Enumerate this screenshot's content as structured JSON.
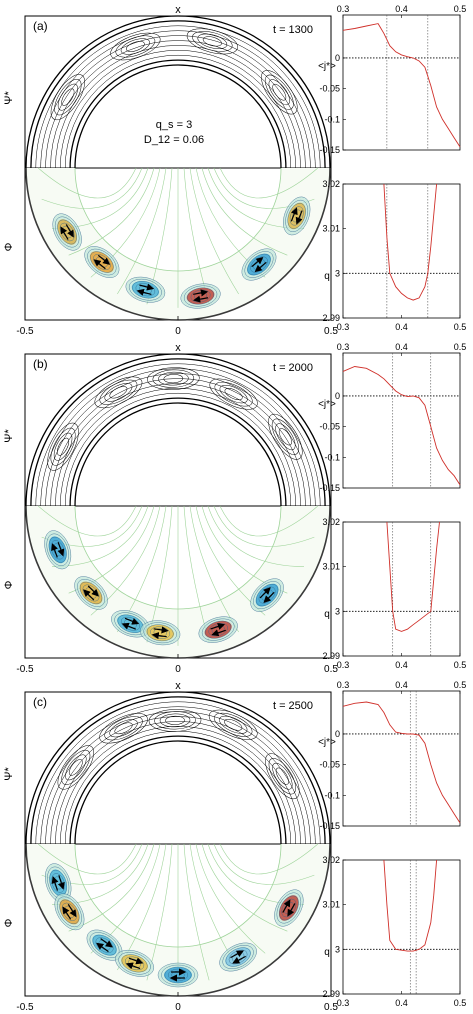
{
  "figure": {
    "panels": [
      {
        "label": "(a)",
        "time": "t = 1300",
        "annotation_lines": [
          "q_s = 3",
          "D_12 = 0.06"
        ],
        "top_label": "x",
        "upper_ylabel": "Ψ*",
        "lower_ylabel": "Φ",
        "x_ticks": [
          "-0.5",
          "0",
          "0.5"
        ],
        "vortex_count": 6
      },
      {
        "label": "(b)",
        "time": "t = 2000",
        "annotation_lines": [],
        "top_label": "x",
        "upper_ylabel": "Ψ*",
        "lower_ylabel": "Φ",
        "x_ticks": [
          "-0.5",
          "0",
          "0.5"
        ],
        "vortex_count": 6
      },
      {
        "label": "(c)",
        "time": "t = 2500",
        "annotation_lines": [],
        "top_label": "x",
        "upper_ylabel": "Ψ*",
        "lower_ylabel": "Φ",
        "x_ticks": [
          "-0.5",
          "0",
          "0.5"
        ],
        "vortex_count": 7
      }
    ]
  },
  "chart_data": [
    {
      "type": "line",
      "panel": "a",
      "name": "j_profile",
      "ylabel": "<j*>",
      "xlim": [
        0.3,
        0.5
      ],
      "ylim": [
        -0.15,
        0.07
      ],
      "x_ticks": [
        "0.3",
        "0.4",
        "0.5"
      ],
      "y_ticks": [
        "0",
        "-0.05",
        "-0.1",
        "-0.15"
      ],
      "series": [
        {
          "x": [
            0.3,
            0.32,
            0.34,
            0.36,
            0.37,
            0.38,
            0.39,
            0.4,
            0.41,
            0.42,
            0.43,
            0.44,
            0.45,
            0.46,
            0.47,
            0.48,
            0.49,
            0.5
          ],
          "y": [
            0.045,
            0.048,
            0.052,
            0.056,
            0.04,
            0.02,
            0.01,
            0.005,
            0.002,
            0.0,
            -0.005,
            -0.015,
            -0.045,
            -0.08,
            -0.1,
            -0.115,
            -0.13,
            -0.145
          ]
        }
      ],
      "vlines": [
        0.375,
        0.445
      ]
    },
    {
      "type": "line",
      "panel": "a",
      "name": "q_profile",
      "ylabel": "q",
      "xlim": [
        0.3,
        0.5
      ],
      "ylim": [
        2.99,
        3.02
      ],
      "x_ticks": [
        "0.3",
        "0.4",
        "0.5"
      ],
      "y_ticks": [
        "3.02",
        "3.01",
        "3",
        "2.99"
      ],
      "series": [
        {
          "x": [
            0.37,
            0.375,
            0.38,
            0.39,
            0.4,
            0.41,
            0.42,
            0.43,
            0.44,
            0.445,
            0.45,
            0.455,
            0.46
          ],
          "y": [
            3.02,
            3.008,
            3.0,
            2.997,
            2.9955,
            2.9945,
            2.994,
            2.9945,
            2.997,
            3.0,
            3.006,
            3.013,
            3.02
          ]
        }
      ],
      "hline": 3.0,
      "vlines": [
        0.375,
        0.445
      ]
    },
    {
      "type": "line",
      "panel": "b",
      "name": "j_profile",
      "ylabel": "<j*>",
      "xlim": [
        0.3,
        0.5
      ],
      "ylim": [
        -0.15,
        0.07
      ],
      "x_ticks": [
        "0.3",
        "0.4",
        "0.5"
      ],
      "y_ticks": [
        "0",
        "-0.05",
        "-0.1",
        "-0.15"
      ],
      "series": [
        {
          "x": [
            0.3,
            0.32,
            0.34,
            0.36,
            0.37,
            0.38,
            0.39,
            0.4,
            0.41,
            0.42,
            0.43,
            0.44,
            0.45,
            0.46,
            0.47,
            0.48,
            0.49,
            0.5
          ],
          "y": [
            0.04,
            0.048,
            0.045,
            0.035,
            0.028,
            0.018,
            0.008,
            0.002,
            -0.001,
            0.0,
            -0.003,
            -0.015,
            -0.05,
            -0.085,
            -0.105,
            -0.12,
            -0.13,
            -0.145
          ]
        }
      ],
      "vlines": [
        0.385,
        0.45
      ]
    },
    {
      "type": "line",
      "panel": "b",
      "name": "q_profile",
      "ylabel": "q",
      "xlim": [
        0.3,
        0.5
      ],
      "ylim": [
        2.99,
        3.02
      ],
      "x_ticks": [
        "0.3",
        "0.4",
        "0.5"
      ],
      "y_ticks": [
        "3.02",
        "3.01",
        "3",
        "2.99"
      ],
      "series": [
        {
          "x": [
            0.375,
            0.38,
            0.385,
            0.39,
            0.4,
            0.41,
            0.42,
            0.43,
            0.44,
            0.45,
            0.455,
            0.46,
            0.465
          ],
          "y": [
            3.02,
            3.01,
            3.0,
            2.996,
            2.9955,
            2.996,
            2.997,
            2.998,
            2.999,
            3.0,
            3.007,
            3.014,
            3.02
          ]
        }
      ],
      "hline": 3.0,
      "vlines": [
        0.385,
        0.45
      ]
    },
    {
      "type": "line",
      "panel": "c",
      "name": "j_profile",
      "ylabel": "<j*>",
      "xlim": [
        0.3,
        0.5
      ],
      "ylim": [
        -0.15,
        0.07
      ],
      "x_ticks": [
        "0.3",
        "0.4",
        "0.5"
      ],
      "y_ticks": [
        "0",
        "-0.05",
        "-0.1",
        "-0.15"
      ],
      "series": [
        {
          "x": [
            0.3,
            0.32,
            0.34,
            0.36,
            0.37,
            0.38,
            0.39,
            0.4,
            0.41,
            0.42,
            0.43,
            0.44,
            0.45,
            0.46,
            0.47,
            0.48,
            0.49,
            0.5
          ],
          "y": [
            0.045,
            0.05,
            0.052,
            0.048,
            0.035,
            0.015,
            0.003,
            0.001,
            0.0,
            0.0,
            -0.002,
            -0.015,
            -0.05,
            -0.08,
            -0.1,
            -0.115,
            -0.13,
            -0.145
          ]
        }
      ],
      "vlines": [
        0.415,
        0.425
      ]
    },
    {
      "type": "line",
      "panel": "c",
      "name": "q_profile",
      "ylabel": "q",
      "xlim": [
        0.3,
        0.5
      ],
      "ylim": [
        2.99,
        3.02
      ],
      "x_ticks": [
        "0.3",
        "0.4",
        "0.5"
      ],
      "y_ticks": [
        "3.02",
        "3.01",
        "3",
        "2.99"
      ],
      "series": [
        {
          "x": [
            0.37,
            0.375,
            0.38,
            0.39,
            0.4,
            0.41,
            0.42,
            0.43,
            0.44,
            0.45,
            0.455,
            0.46
          ],
          "y": [
            3.02,
            3.01,
            3.002,
            3.0,
            2.9998,
            2.9996,
            2.9996,
            3.0,
            3.001,
            3.006,
            3.012,
            3.02
          ]
        }
      ],
      "hline": 3.0,
      "vlines": [
        0.415,
        0.425
      ]
    }
  ]
}
